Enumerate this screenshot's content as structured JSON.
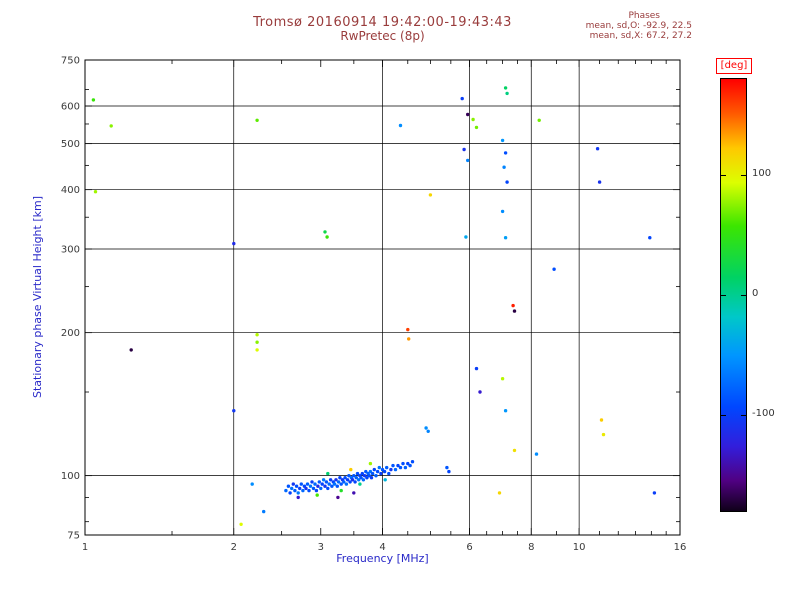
{
  "header": {
    "title": "Tromsø 20160914 19:42:00-19:43:43",
    "subtitle": "RwPretec (8p)",
    "stats": {
      "label": "Phases",
      "line_o": "mean, sd,O: -92.9, 22.5",
      "line_x": "mean, sd,X:  67.2, 27.2"
    }
  },
  "colors": {
    "title": "#993c3c",
    "stats": "#993c3c",
    "axis_label": "#2929c8",
    "tick_label": "#3a3a3a",
    "deg_label": "#ff0000",
    "frame": "#000000"
  },
  "chart_data": {
    "type": "scatter",
    "title": "Tromsø 20160914 19:42:00-19:43:43",
    "subtitle": "RwPretec (8p)",
    "xlabel": "Frequency [MHz]",
    "ylabel": "Stationary phase Virtual Height [km]",
    "x_scale": "log",
    "y_scale": "log",
    "xlim": [
      1,
      16
    ],
    "ylim": [
      75,
      750
    ],
    "x_ticks_labeled": [
      1,
      2,
      3,
      4,
      6,
      8,
      10,
      16
    ],
    "x_gridlines": [
      2,
      4,
      6,
      8,
      10
    ],
    "x_minor_ticks": [
      1.5,
      2.5,
      3.5,
      4.5,
      5,
      5.5,
      6.5,
      7,
      7.5,
      9,
      11,
      12,
      13,
      14,
      15
    ],
    "y_ticks_labeled": [
      750,
      600,
      500,
      400,
      300,
      200,
      100,
      75
    ],
    "y_gridlines": [
      600,
      500,
      400,
      300,
      200,
      100
    ],
    "y_minor_ticks": [
      650,
      550,
      450,
      350,
      250,
      150,
      90,
      80
    ],
    "grid": true,
    "legend": "colorbar-right",
    "colorbar": {
      "label": "[deg]",
      "range": [
        -180,
        180
      ],
      "ticks": [
        100,
        0,
        -100
      ],
      "stops": [
        [
          0.0,
          255,
          0,
          0
        ],
        [
          0.08,
          255,
          90,
          0
        ],
        [
          0.16,
          255,
          200,
          0
        ],
        [
          0.24,
          220,
          255,
          0
        ],
        [
          0.34,
          60,
          230,
          0
        ],
        [
          0.46,
          0,
          210,
          100
        ],
        [
          0.55,
          0,
          200,
          200
        ],
        [
          0.64,
          0,
          150,
          255
        ],
        [
          0.76,
          0,
          70,
          255
        ],
        [
          0.85,
          50,
          30,
          220
        ],
        [
          0.93,
          80,
          0,
          130
        ],
        [
          1.0,
          15,
          0,
          25
        ]
      ]
    },
    "point_format": [
      "frequency_mhz",
      "virtual_height_km",
      "phase_deg"
    ],
    "points": [
      [
        2.55,
        93,
        -75
      ],
      [
        2.58,
        95,
        -85
      ],
      [
        2.6,
        92,
        -95
      ],
      [
        2.62,
        94,
        -70
      ],
      [
        2.64,
        96,
        -105
      ],
      [
        2.66,
        93,
        -80
      ],
      [
        2.68,
        95,
        -90
      ],
      [
        2.7,
        92,
        -65
      ],
      [
        2.72,
        94,
        -100
      ],
      [
        2.74,
        96,
        -85
      ],
      [
        2.76,
        93,
        -75
      ],
      [
        2.78,
        95,
        -95
      ],
      [
        2.8,
        94,
        -110
      ],
      [
        2.82,
        96,
        -80
      ],
      [
        2.84,
        93,
        -90
      ],
      [
        2.86,
        95,
        -70
      ],
      [
        2.88,
        97,
        -100
      ],
      [
        2.9,
        94,
        -85
      ],
      [
        2.92,
        96,
        -75
      ],
      [
        2.94,
        93,
        -95
      ],
      [
        2.96,
        95,
        -115
      ],
      [
        2.98,
        97,
        -85
      ],
      [
        3.0,
        94,
        -75
      ],
      [
        3.02,
        96,
        -95
      ],
      [
        3.04,
        98,
        -65
      ],
      [
        3.06,
        95,
        -105
      ],
      [
        3.08,
        97,
        -85
      ],
      [
        3.1,
        94,
        -90
      ],
      [
        3.12,
        96,
        -75
      ],
      [
        3.14,
        98,
        -100
      ],
      [
        3.16,
        95,
        -85
      ],
      [
        3.18,
        97,
        -95
      ],
      [
        3.2,
        96,
        -70
      ],
      [
        3.22,
        98,
        -110
      ],
      [
        3.24,
        95,
        -85
      ],
      [
        3.26,
        97,
        -75
      ],
      [
        3.28,
        99,
        -95
      ],
      [
        3.3,
        96,
        -85
      ],
      [
        3.32,
        98,
        -105
      ],
      [
        3.34,
        97,
        -80
      ],
      [
        3.36,
        99,
        -90
      ],
      [
        3.38,
        96,
        -70
      ],
      [
        3.4,
        98,
        -100
      ],
      [
        3.42,
        100,
        -85
      ],
      [
        3.44,
        97,
        -95
      ],
      [
        3.46,
        99,
        -75
      ],
      [
        3.48,
        98,
        -110
      ],
      [
        3.5,
        100,
        -85
      ],
      [
        3.52,
        97,
        -95
      ],
      [
        3.54,
        99,
        -80
      ],
      [
        3.56,
        101,
        -90
      ],
      [
        3.58,
        98,
        -70
      ],
      [
        3.6,
        100,
        -100
      ],
      [
        3.62,
        99,
        -85
      ],
      [
        3.64,
        101,
        -95
      ],
      [
        3.66,
        98,
        -75
      ],
      [
        3.68,
        100,
        -105
      ],
      [
        3.7,
        102,
        -85
      ],
      [
        3.72,
        99,
        -95
      ],
      [
        3.74,
        101,
        -80
      ],
      [
        3.76,
        100,
        -90
      ],
      [
        3.78,
        102,
        -70
      ],
      [
        3.8,
        99,
        -100
      ],
      [
        3.82,
        101,
        -85
      ],
      [
        3.85,
        103,
        -95
      ],
      [
        3.88,
        100,
        -80
      ],
      [
        3.91,
        102,
        -90
      ],
      [
        3.94,
        104,
        -70
      ],
      [
        3.97,
        101,
        -100
      ],
      [
        4.0,
        103,
        -85
      ],
      [
        4.04,
        102,
        -95
      ],
      [
        4.08,
        104,
        -80
      ],
      [
        4.12,
        101,
        -90
      ],
      [
        4.16,
        103,
        -105
      ],
      [
        4.2,
        105,
        -85
      ],
      [
        4.25,
        103,
        -75
      ],
      [
        4.3,
        105,
        -95
      ],
      [
        4.35,
        104,
        -85
      ],
      [
        4.4,
        106,
        -90
      ],
      [
        4.45,
        104,
        -80
      ],
      [
        4.5,
        106,
        -95
      ],
      [
        4.55,
        105,
        -85
      ],
      [
        4.6,
        107,
        -90
      ],
      [
        2.95,
        91,
        60
      ],
      [
        3.1,
        101,
        10
      ],
      [
        3.3,
        93,
        40
      ],
      [
        3.45,
        103,
        120
      ],
      [
        3.6,
        96,
        0
      ],
      [
        3.78,
        106,
        80
      ],
      [
        3.25,
        90,
        -150
      ],
      [
        3.5,
        92,
        -140
      ],
      [
        2.7,
        90,
        -130
      ],
      [
        4.05,
        98,
        -30
      ],
      [
        1.04,
        618,
        55
      ],
      [
        1.13,
        545,
        75
      ],
      [
        1.05,
        396,
        80
      ],
      [
        1.24,
        184,
        -170
      ],
      [
        2.0,
        308,
        -115
      ],
      [
        2.0,
        137,
        -105
      ],
      [
        2.23,
        560,
        65
      ],
      [
        2.23,
        198,
        85
      ],
      [
        2.23,
        191,
        75
      ],
      [
        2.23,
        184,
        95
      ],
      [
        2.18,
        96,
        -55
      ],
      [
        2.07,
        79,
        95
      ],
      [
        2.3,
        84,
        -65
      ],
      [
        3.06,
        326,
        25
      ],
      [
        3.09,
        318,
        55
      ],
      [
        4.35,
        546,
        -55
      ],
      [
        4.5,
        203,
        160
      ],
      [
        4.52,
        194,
        135
      ],
      [
        4.9,
        126,
        -55
      ],
      [
        4.95,
        124,
        -60
      ],
      [
        5.0,
        390,
        115
      ],
      [
        5.4,
        104,
        -85
      ],
      [
        5.45,
        102,
        -95
      ],
      [
        5.8,
        622,
        -100
      ],
      [
        5.95,
        576,
        -165
      ],
      [
        6.1,
        562,
        75
      ],
      [
        6.2,
        541,
        70
      ],
      [
        5.85,
        486,
        -110
      ],
      [
        5.95,
        461,
        -60
      ],
      [
        5.9,
        318,
        -40
      ],
      [
        6.2,
        168,
        -100
      ],
      [
        6.3,
        150,
        -130
      ],
      [
        7.1,
        655,
        15
      ],
      [
        7.15,
        638,
        5
      ],
      [
        7.0,
        508,
        -50
      ],
      [
        7.1,
        478,
        -90
      ],
      [
        7.05,
        446,
        -60
      ],
      [
        7.15,
        415,
        -95
      ],
      [
        7.0,
        360,
        -55
      ],
      [
        7.1,
        317,
        -45
      ],
      [
        7.35,
        228,
        170
      ],
      [
        7.4,
        222,
        -170
      ],
      [
        7.0,
        160,
        85
      ],
      [
        7.1,
        137,
        -50
      ],
      [
        7.4,
        113,
        110
      ],
      [
        6.9,
        92,
        115
      ],
      [
        8.3,
        560,
        70
      ],
      [
        8.2,
        111,
        -55
      ],
      [
        8.9,
        272,
        -90
      ],
      [
        10.9,
        488,
        -105
      ],
      [
        11.0,
        415,
        -110
      ],
      [
        11.1,
        131,
        120
      ],
      [
        11.2,
        122,
        105
      ],
      [
        13.9,
        317,
        -95
      ],
      [
        14.2,
        92,
        -100
      ]
    ]
  }
}
